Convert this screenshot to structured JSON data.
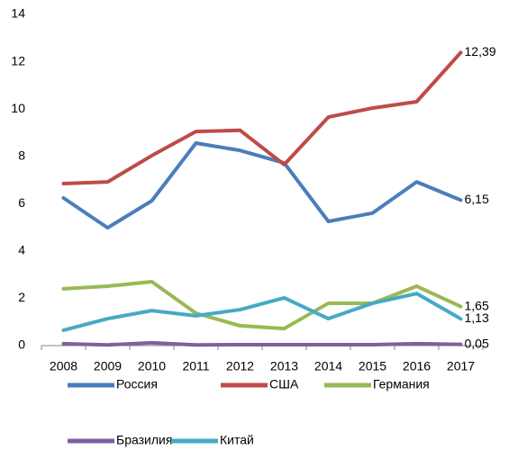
{
  "chart_data": {
    "type": "line",
    "categories": [
      "2008",
      "2009",
      "2010",
      "2011",
      "2012",
      "2013",
      "2014",
      "2015",
      "2016",
      "2017"
    ],
    "series": [
      {
        "name": "Россия",
        "color": "#4a7ebb",
        "values": [
          6.24,
          4.98,
          6.12,
          8.56,
          8.25,
          7.72,
          5.25,
          5.6,
          6.92,
          6.15
        ],
        "value_labels": [
          null,
          null,
          null,
          null,
          null,
          null,
          null,
          null,
          null,
          "6,15"
        ]
      },
      {
        "name": "США",
        "color": "#be4b48",
        "values": [
          6.85,
          6.92,
          8.03,
          9.05,
          9.1,
          7.65,
          9.66,
          10.04,
          10.31,
          12.39
        ],
        "value_labels": [
          null,
          null,
          null,
          null,
          null,
          null,
          null,
          null,
          null,
          "12,39"
        ]
      },
      {
        "name": "Германия",
        "color": "#98b954",
        "values": [
          2.4,
          2.51,
          2.7,
          1.37,
          0.84,
          0.72,
          1.79,
          1.79,
          2.51,
          1.65
        ],
        "value_labels": [
          null,
          null,
          null,
          null,
          null,
          null,
          null,
          null,
          null,
          "1,65"
        ]
      },
      {
        "name": "Бразилия",
        "color": "#7d60a0",
        "values": [
          0.08,
          0.03,
          0.12,
          0.03,
          0.04,
          0.04,
          0.04,
          0.04,
          0.08,
          0.05
        ],
        "value_labels": [
          null,
          null,
          null,
          null,
          null,
          null,
          null,
          null,
          null,
          "0,05"
        ]
      },
      {
        "name": "Китай",
        "color": "#46aac5",
        "values": [
          0.65,
          1.14,
          1.48,
          1.26,
          1.52,
          2.02,
          1.14,
          1.79,
          2.2,
          1.13
        ],
        "value_labels": [
          null,
          null,
          null,
          null,
          null,
          null,
          null,
          null,
          null,
          "1,13"
        ]
      }
    ],
    "ylim": [
      0,
      14
    ],
    "yticks": [
      0,
      2,
      4,
      6,
      8,
      10,
      12,
      14
    ],
    "grid": false,
    "legend": "bottom"
  }
}
